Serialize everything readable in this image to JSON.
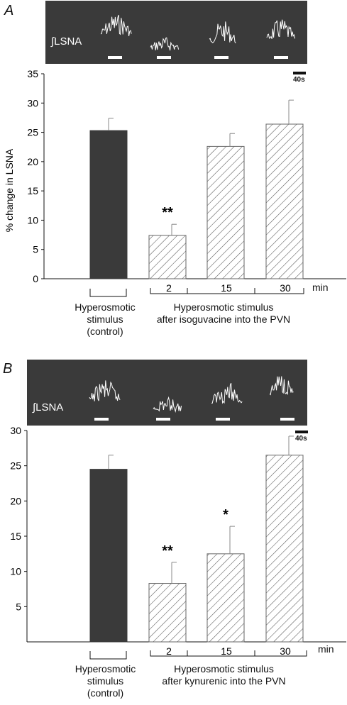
{
  "panels": [
    {
      "letter": "A",
      "trace_label": "∫LSNA",
      "scale_label": "40s",
      "ylabel": "% change in LSNA",
      "control_label": "Hyperosmotic\nstimulus\n(control)",
      "group_label": "Hyperosmotic stimulus\nafter isoguvacine into the PVN",
      "min_label": "min",
      "colors": {
        "control": "#3a3a3a",
        "hatch": "#555555"
      }
    },
    {
      "letter": "B",
      "trace_label": "∫LSNA",
      "scale_label": "40s",
      "ylabel": "% change in LSNA",
      "control_label": "Hyperosmotic\nstimulus\n(control)",
      "group_label": "Hyperosmotic stimulus\nafter kynurenic into the PVN",
      "min_label": "min",
      "colors": {
        "control": "#3a3a3a",
        "hatch": "#555555"
      }
    }
  ],
  "chart_data": [
    {
      "type": "bar",
      "categories": [
        "control",
        "2",
        "15",
        "30"
      ],
      "values": [
        25.3,
        7.4,
        22.6,
        26.4
      ],
      "errors": [
        2.1,
        1.9,
        2.2,
        4.1
      ],
      "significance": [
        "",
        "**",
        "",
        ""
      ],
      "ylabel": "% change in LSNA",
      "ylim": [
        0,
        35
      ],
      "yticks": [
        0,
        5,
        10,
        15,
        20,
        25,
        30,
        35
      ]
    },
    {
      "type": "bar",
      "categories": [
        "control",
        "2",
        "15",
        "30"
      ],
      "values": [
        24.5,
        8.3,
        12.5,
        26.5
      ],
      "errors": [
        2.0,
        3.0,
        3.9,
        2.7
      ],
      "significance": [
        "",
        "**",
        "*",
        ""
      ],
      "ylabel": "% change in LSNA",
      "ylim": [
        0,
        30
      ],
      "yticks": [
        5,
        10,
        15,
        20,
        25,
        30
      ]
    }
  ]
}
